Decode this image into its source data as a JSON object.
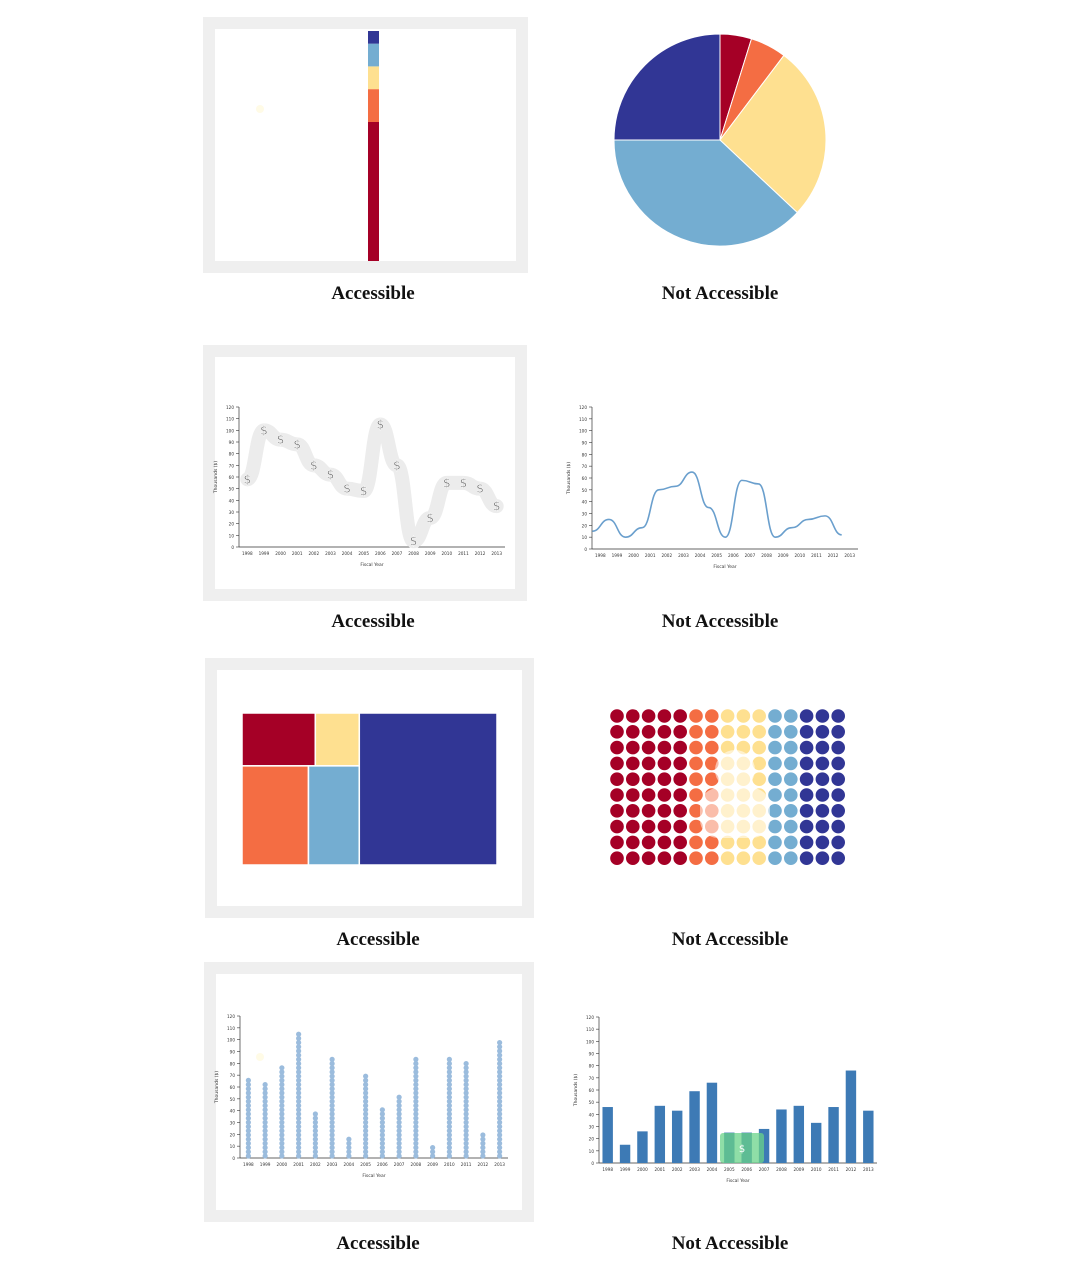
{
  "captions": {
    "row1_left": "Accessible",
    "row1_right": "Not Accessible",
    "row2_left": "Accessible",
    "row2_right": "Not Accessible",
    "row3_left": "Accessible",
    "row3_right": "Not Accessible",
    "row4_left": "Accessible",
    "row4_right": "Not Accessible"
  },
  "colors": {
    "dark_red": "#a50026",
    "orange": "#f46d43",
    "light_yellow": "#fee090",
    "light_blue": "#74add1",
    "dark_blue": "#313695",
    "line_blue": "#6a9fcd",
    "bar_blue": "#3d7ab5",
    "dot_blue": "#9bbcdd",
    "frame_gray": "#efefef"
  },
  "chart_data": [
    {
      "type": "bar",
      "stacked": true,
      "series": [
        {
          "color": "dark_red",
          "values": [
            55
          ]
        },
        {
          "color": "orange",
          "values": [
            13
          ]
        },
        {
          "color": "light_yellow",
          "values": [
            9
          ]
        },
        {
          "color": "light_blue",
          "values": [
            9
          ]
        },
        {
          "color": "dark_blue",
          "values": [
            5
          ]
        }
      ],
      "categories": [
        ""
      ]
    },
    {
      "type": "pie",
      "slices": [
        {
          "color": "dark_red",
          "value": 4.8
        },
        {
          "color": "orange",
          "value": 5.5
        },
        {
          "color": "light_yellow",
          "value": 26.7
        },
        {
          "color": "light_blue",
          "value": 38.0
        },
        {
          "color": "dark_blue",
          "value": 25.0
        }
      ]
    },
    {
      "type": "line",
      "style": "dollar-sign markers on wide gray band",
      "x": [
        "1998",
        "1999",
        "2000",
        "2001",
        "2002",
        "2003",
        "2004",
        "2005",
        "2006",
        "2007",
        "2008",
        "2009",
        "2010",
        "2011",
        "2012",
        "2013"
      ],
      "values": [
        58,
        100,
        92,
        88,
        70,
        62,
        50,
        48,
        105,
        70,
        5,
        25,
        55,
        55,
        50,
        35
      ],
      "ylim": [
        0,
        120
      ],
      "yticks": [
        0,
        10,
        20,
        30,
        40,
        50,
        60,
        70,
        80,
        90,
        100,
        110,
        120
      ],
      "xlabel": "Fiscal Year",
      "ylabel": "Thousands ($)"
    },
    {
      "type": "line",
      "x": [
        "1998",
        "1999",
        "2000",
        "2001",
        "2002",
        "2003",
        "2004",
        "2005",
        "2006",
        "2007",
        "2008",
        "2009",
        "2010",
        "2011",
        "2012",
        "2013"
      ],
      "values": [
        15,
        25,
        10,
        18,
        50,
        53,
        65,
        35,
        10,
        58,
        55,
        10,
        18,
        25,
        28,
        12
      ],
      "ylim": [
        0,
        120
      ],
      "yticks": [
        0,
        10,
        20,
        30,
        40,
        50,
        60,
        70,
        80,
        90,
        100,
        110,
        120
      ],
      "xlabel": "Fiscal Year",
      "ylabel": "Thousands ($)"
    },
    {
      "type": "heatmap",
      "style": "treemap",
      "cells": [
        {
          "color": "dark_red",
          "value": 10
        },
        {
          "color": "light_yellow",
          "value": 6
        },
        {
          "color": "orange",
          "value": 17
        },
        {
          "color": "light_blue",
          "value": 13
        },
        {
          "color": "dark_blue",
          "value": 54
        }
      ]
    },
    {
      "type": "heatmap",
      "style": "dot grid (15 columns x 10 rows)",
      "columns": 15,
      "rows": 10,
      "column_colors": [
        "dark_red",
        "dark_red",
        "dark_red",
        "dark_red",
        "dark_red",
        "orange",
        "orange",
        "light_yellow",
        "light_yellow",
        "light_yellow",
        "light_blue",
        "light_blue",
        "dark_blue",
        "dark_blue",
        "dark_blue"
      ]
    },
    {
      "type": "bar",
      "style": "stacked dot columns",
      "x": [
        "1998",
        "1999",
        "2000",
        "2001",
        "2002",
        "2003",
        "2004",
        "2005",
        "2006",
        "2007",
        "2008",
        "2009",
        "2010",
        "2011",
        "2012",
        "2013"
      ],
      "values": [
        68,
        63,
        77,
        108,
        38,
        85,
        17,
        70,
        44,
        53,
        85,
        10,
        86,
        80,
        22,
        98
      ],
      "ylim": [
        0,
        120
      ],
      "yticks": [
        0,
        10,
        20,
        30,
        40,
        50,
        60,
        70,
        80,
        90,
        100,
        110,
        120
      ],
      "xlabel": "Fiscal Year",
      "ylabel": "Thousands ($)"
    },
    {
      "type": "bar",
      "x": [
        "1998",
        "1999",
        "2000",
        "2001",
        "2002",
        "2003",
        "2004",
        "2005",
        "2006",
        "2007",
        "2008",
        "2009",
        "2010",
        "2011",
        "2012",
        "2013"
      ],
      "values": [
        46,
        15,
        26,
        47,
        43,
        59,
        66,
        25,
        25,
        28,
        44,
        47,
        33,
        46,
        76,
        43
      ],
      "ylim": [
        0,
        120
      ],
      "yticks": [
        0,
        10,
        20,
        30,
        40,
        50,
        60,
        70,
        80,
        90,
        100,
        110,
        120
      ],
      "xlabel": "Fiscal Year",
      "ylabel": "Thousands ($)"
    }
  ]
}
